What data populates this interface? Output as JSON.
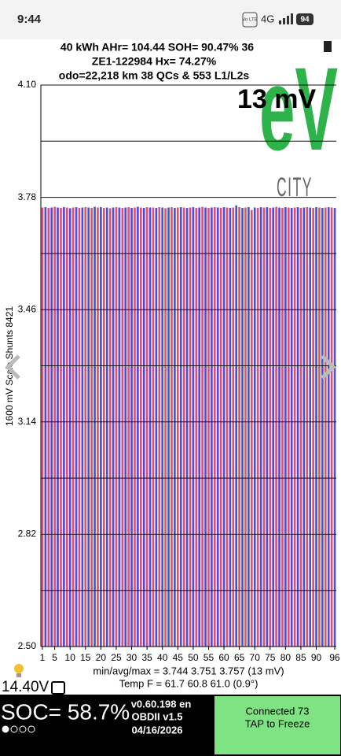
{
  "status_bar": {
    "time": "9:44",
    "volte": "Vo LTE",
    "network": "4G",
    "battery": "94"
  },
  "header": {
    "line1": "40 kWh  AHr= 104.44  SOH= 90.47%  36",
    "line2": "ZE1-122984  Hx= 74.27%",
    "line3": "odo=22,218 km 38 QCs & 553 L1/L2s",
    "spread": "13 mV",
    "logo": "eV",
    "logo_sub": "CITY"
  },
  "chart_data": {
    "type": "bar",
    "y_label": "1600 mV Scale  Shunts 8421",
    "x": [
      1,
      2,
      3,
      4,
      5,
      6,
      7,
      8,
      9,
      10,
      11,
      12,
      13,
      14,
      15,
      16,
      17,
      18,
      19,
      20,
      21,
      22,
      23,
      24,
      25,
      26,
      27,
      28,
      29,
      30,
      31,
      32,
      33,
      34,
      35,
      36,
      37,
      38,
      39,
      40,
      41,
      42,
      43,
      44,
      45,
      46,
      47,
      48,
      49,
      50,
      51,
      52,
      53,
      54,
      55,
      56,
      57,
      58,
      59,
      60,
      61,
      62,
      63,
      64,
      65,
      66,
      67,
      68,
      69,
      70,
      71,
      72,
      73,
      74,
      75,
      76,
      77,
      78,
      79,
      80,
      81,
      82,
      83,
      84,
      85,
      86,
      87,
      88,
      89,
      90,
      91,
      92,
      93,
      94,
      95,
      96
    ],
    "values": [
      3.751,
      3.752,
      3.75,
      3.751,
      3.753,
      3.751,
      3.75,
      3.752,
      3.751,
      3.749,
      3.751,
      3.752,
      3.75,
      3.751,
      3.752,
      3.751,
      3.75,
      3.753,
      3.751,
      3.752,
      3.75,
      3.751,
      3.749,
      3.751,
      3.752,
      3.751,
      3.75,
      3.751,
      3.752,
      3.75,
      3.751,
      3.753,
      3.751,
      3.75,
      3.752,
      3.751,
      3.751,
      3.75,
      3.752,
      3.751,
      3.749,
      3.751,
      3.752,
      3.75,
      3.751,
      3.752,
      3.751,
      3.75,
      3.751,
      3.752,
      3.75,
      3.751,
      3.753,
      3.751,
      3.75,
      3.751,
      3.752,
      3.751,
      3.75,
      3.752,
      3.751,
      3.75,
      3.751,
      3.757,
      3.752,
      3.75,
      3.751,
      3.752,
      3.744,
      3.751,
      3.75,
      3.752,
      3.751,
      3.752,
      3.75,
      3.751,
      3.753,
      3.751,
      3.75,
      3.752,
      3.751,
      3.75,
      3.751,
      3.752,
      3.75,
      3.751,
      3.752,
      3.751,
      3.75,
      3.752,
      3.751,
      3.75,
      3.751,
      3.752,
      3.751,
      3.75
    ],
    "colors": [
      "#e0506e",
      "#4a4ede"
    ],
    "xlim": [
      0.5,
      96.5
    ],
    "xticks": [
      1,
      5,
      10,
      15,
      20,
      25,
      30,
      35,
      40,
      45,
      50,
      55,
      60,
      65,
      70,
      75,
      80,
      85,
      90,
      96
    ],
    "ylim": [
      2.5,
      4.1
    ],
    "yticks": [
      {
        "value": 2.5,
        "label": "2.50"
      },
      2.82,
      3.14,
      3.46,
      3.78,
      {
        "value": 4.1,
        "label": "4.10"
      }
    ],
    "minor_yticks": [
      2.66,
      2.98,
      3.3,
      3.62,
      3.94
    ],
    "grid": true
  },
  "footer": {
    "stats": "min/avg/max = 3.744 3.751 3.757  (13 mV)",
    "temp": "Temp F = 61.7  60.8  61.0  (0.9°)",
    "aux_voltage": "14.40V",
    "soc": "SOC= 58.7%",
    "version": "v0.60.198 en",
    "obd": "OBDII  v1.5",
    "date": "04/16/2026",
    "button_line1": "Connected 73",
    "button_line2": "TAP to Freeze"
  }
}
